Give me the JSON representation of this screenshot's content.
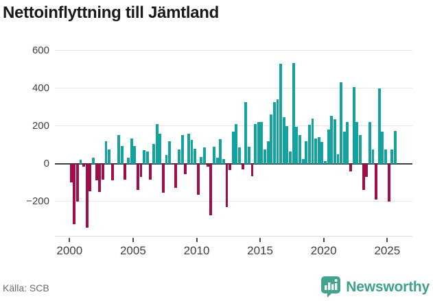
{
  "title": "Nettoinflyttning till Jämtland",
  "footer": {
    "source": "Källa: SCB"
  },
  "logo": {
    "text": "Newsworthy",
    "icon": "newsworthy-speech-bubble-chart-icon"
  },
  "colors": {
    "positive_bar": "#13a29d",
    "negative_bar": "#a00d49",
    "zero_line": "#3d3d3d",
    "gridline": "#e4e4e4",
    "axis_text": "#3f3f3f",
    "title_text": "#191919",
    "source_text": "#6a6a6a",
    "logo_teal": "#3ea18c"
  },
  "chart_data": {
    "type": "bar",
    "title": "Nettoinflyttning till Jämtland",
    "frequency": "quarterly",
    "x_start": "2000 Q1",
    "x_end": "2025 Q3",
    "grid": "horizontal",
    "legend": "none",
    "ylim": [
      -400,
      650
    ],
    "y_ticks": [
      600,
      400,
      200,
      0,
      -200
    ],
    "y_tick_labels": [
      "600",
      "400",
      "200",
      "0",
      "−200"
    ],
    "x_tick_years": [
      2000,
      2005,
      2010,
      2015,
      2020,
      2025
    ],
    "x_tick_labels": [
      "2000",
      "2005",
      "2010",
      "2015",
      "2020",
      "2025"
    ],
    "values": [
      -100,
      -320,
      -200,
      20,
      -15,
      -340,
      -145,
      30,
      -90,
      -150,
      -85,
      120,
      75,
      -90,
      0,
      150,
      95,
      -85,
      30,
      135,
      95,
      -140,
      -70,
      70,
      65,
      -85,
      105,
      210,
      160,
      -155,
      45,
      120,
      0,
      -130,
      75,
      150,
      -55,
      160,
      125,
      80,
      -165,
      35,
      85,
      -15,
      -275,
      90,
      30,
      130,
      25,
      -230,
      -35,
      170,
      210,
      85,
      -30,
      325,
      90,
      -65,
      210,
      220,
      220,
      75,
      120,
      260,
      325,
      340,
      530,
      245,
      200,
      65,
      535,
      195,
      150,
      25,
      120,
      205,
      240,
      135,
      140,
      115,
      15,
      180,
      255,
      235,
      50,
      430,
      170,
      220,
      -40,
      405,
      220,
      150,
      -140,
      -70,
      220,
      75,
      -190,
      400,
      170,
      75,
      -200,
      75,
      175
    ]
  }
}
